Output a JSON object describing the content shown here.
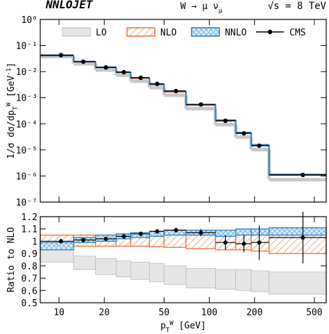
{
  "chart_data": [
    {
      "type": "histogram",
      "title": "NNLOJET",
      "process": [
        {
          "text": "W → μ ν"
        },
        {
          "text": "μ",
          "shift": "sub"
        }
      ],
      "energy": "√s = 8 TeV",
      "ylabel": [
        {
          "text": "1/σ dσ/dp"
        },
        {
          "text": "T",
          "shift": "sub"
        },
        {
          "text": "W",
          "shift": "super"
        },
        {
          "text": " [GeV"
        },
        {
          "text": "-1",
          "shift": "super"
        },
        {
          "text": "]"
        }
      ],
      "bins": [
        7.5,
        12.5,
        17.5,
        24,
        30,
        40,
        50,
        70,
        110,
        150,
        190,
        250,
        600
      ],
      "xlim": [
        7.5,
        600
      ],
      "xlog": true,
      "xticks": [
        10,
        20,
        50,
        100,
        200,
        500
      ],
      "ylim": [
        1e-07,
        1
      ],
      "ylog": true,
      "yticks": [
        {
          "value": 1,
          "label": "10⁰"
        },
        {
          "value": 0.1,
          "label": "10⁻¹"
        },
        {
          "value": 0.01,
          "label": "10⁻²"
        },
        {
          "value": 0.001,
          "label": "10⁻³"
        },
        {
          "value": 0.0001,
          "label": "10⁻⁴"
        },
        {
          "value": 1e-05,
          "label": "10⁻⁵"
        },
        {
          "value": 1e-06,
          "label": "10⁻⁶"
        },
        {
          "value": 1e-07,
          "label": "10⁻⁷"
        }
      ],
      "legend": "top",
      "series": [
        {
          "name": "LO",
          "color": "#c8c8c8",
          "values": [
            0.038,
            0.02,
            0.0115,
            0.0072,
            0.0043,
            0.0024,
            0.00125,
            0.00038,
            9.3e-05,
            3.1e-05,
            1.02e-05,
            7.2e-07
          ]
        },
        {
          "name": "NLO",
          "color": "#e8703a",
          "values": [
            0.043,
            0.0238,
            0.0142,
            0.0091,
            0.0055,
            0.0031,
            0.00165,
            0.00051,
            0.000131,
            4.4e-05,
            1.47e-05,
            1.07e-06
          ]
        },
        {
          "name": "NNLO",
          "color": "#2a7fc0",
          "values": [
            0.041,
            0.0245,
            0.0148,
            0.0096,
            0.0058,
            0.0033,
            0.00178,
            0.00055,
            0.000139,
            4.65e-05,
            1.57e-05,
            1.15e-06
          ]
        },
        {
          "name": "CMS",
          "color": "#000000",
          "x": [
            10.3,
            14.5,
            20.5,
            27,
            35,
            45,
            60,
            88,
            128,
            170,
            215,
            420
          ],
          "values": [
            0.043,
            0.024,
            0.0145,
            0.0095,
            0.0058,
            0.0034,
            0.0018,
            0.00055,
            0.00013,
            4.3e-05,
            1.45e-05,
            1.1e-06
          ]
        }
      ]
    },
    {
      "type": "ratio",
      "ylabel": "Ratio to NLO",
      "xlabel": [
        {
          "text": "p"
        },
        {
          "text": "T",
          "shift": "sub"
        },
        {
          "text": "W",
          "shift": "super"
        },
        {
          "text": " [GeV]"
        }
      ],
      "bins": [
        7.5,
        12.5,
        17.5,
        24,
        30,
        40,
        50,
        70,
        110,
        150,
        190,
        250,
        600
      ],
      "xlim": [
        7.5,
        600
      ],
      "xlog": true,
      "xticks": [
        10,
        20,
        50,
        100,
        200,
        500
      ],
      "ylim": [
        0.5,
        1.2
      ],
      "yticks": [
        0.5,
        0.6,
        0.7,
        0.8,
        0.9,
        1,
        1.1,
        1.2
      ],
      "series": [
        {
          "color": "#c8c8c8",
          "low": [
            0.83,
            0.77,
            0.73,
            0.71,
            0.69,
            0.67,
            0.65,
            0.62,
            0.61,
            0.6,
            0.59,
            0.57
          ],
          "high": [
            0.93,
            0.88,
            0.86,
            0.84,
            0.83,
            0.82,
            0.8,
            0.78,
            0.77,
            0.77,
            0.76,
            0.75
          ]
        },
        {
          "color": "#e8703a",
          "low": [
            0.95,
            0.96,
            0.96,
            0.96,
            0.96,
            0.955,
            0.95,
            0.94,
            0.93,
            0.93,
            0.92,
            0.9
          ],
          "high": [
            1.05,
            1.05,
            1.05,
            1.05,
            1.05,
            1.055,
            1.06,
            1.06,
            1.06,
            1.06,
            1.065,
            1.07
          ]
        },
        {
          "color": "#2a7fc0",
          "low": [
            0.93,
            0.99,
            1.0,
            1.02,
            1.03,
            1.04,
            1.05,
            1.05,
            1.04,
            1.05,
            1.05,
            1.05
          ],
          "high": [
            0.99,
            1.03,
            1.05,
            1.06,
            1.07,
            1.08,
            1.09,
            1.09,
            1.09,
            1.1,
            1.1,
            1.11
          ]
        },
        {
          "color": "#000000",
          "x": [
            10.3,
            14.5,
            20.5,
            27,
            35,
            45,
            60,
            88,
            128,
            170,
            215,
            420
          ],
          "values": [
            1.0,
            1.01,
            1.02,
            1.04,
            1.06,
            1.08,
            1.09,
            1.07,
            0.99,
            0.98,
            0.99,
            1.03
          ],
          "errors": [
            0.02,
            0.015,
            0.015,
            0.02,
            0.02,
            0.02,
            0.02,
            0.03,
            0.06,
            0.07,
            0.14,
            0.21
          ]
        }
      ]
    }
  ]
}
